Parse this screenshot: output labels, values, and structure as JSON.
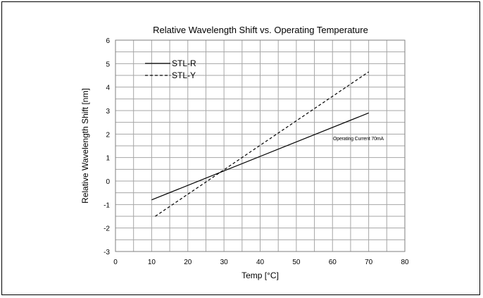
{
  "chart_data": {
    "type": "line",
    "title": "Relative Wavelength Shift  vs. Operating Temperature",
    "xlabel": "Temp [°C]",
    "ylabel": "Relative Wavelength Shift [nm]",
    "xlim": [
      0,
      80
    ],
    "ylim": [
      -3,
      6
    ],
    "x_ticks": [
      0,
      10,
      20,
      30,
      40,
      50,
      60,
      70,
      80
    ],
    "y_ticks": [
      -3,
      -2,
      -1,
      0,
      1,
      2,
      3,
      4,
      5,
      6
    ],
    "x_minor_step": 5,
    "y_minor_step": 0.5,
    "grid": true,
    "legend_position": "top-left",
    "annotation": "Operating Current 70mA",
    "series": [
      {
        "name": "STL-R",
        "line_style": "solid",
        "color": "#000000",
        "x": [
          10,
          70
        ],
        "y": [
          -0.8,
          2.9
        ]
      },
      {
        "name": "STL-Y",
        "line_style": "dashed",
        "color": "#000000",
        "x": [
          11,
          70
        ],
        "y": [
          -1.5,
          4.65
        ]
      }
    ]
  }
}
